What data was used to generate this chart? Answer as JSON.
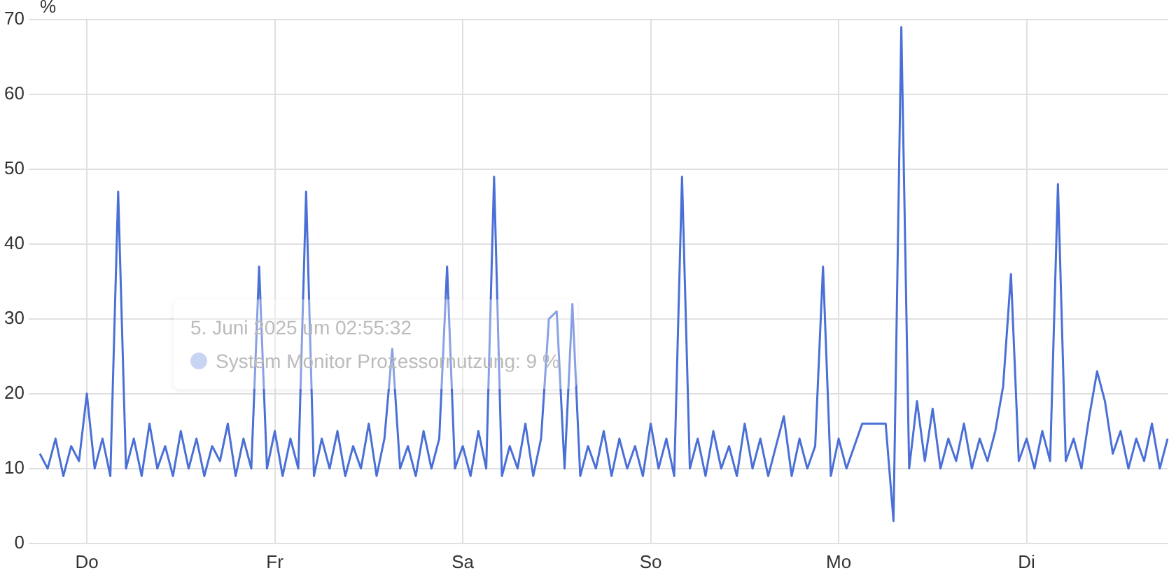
{
  "chart_data": {
    "type": "line",
    "ylabel": "%",
    "categories": [
      null,
      null,
      null,
      null,
      null,
      null,
      "Do",
      null,
      null,
      null,
      null,
      null,
      null,
      null,
      null,
      null,
      null,
      null,
      null,
      null,
      null,
      null,
      null,
      null,
      null,
      null,
      null,
      null,
      null,
      null,
      "Fr",
      null,
      null,
      null,
      null,
      null,
      null,
      null,
      null,
      null,
      null,
      null,
      null,
      null,
      null,
      null,
      null,
      null,
      null,
      null,
      null,
      null,
      null,
      null,
      "Sa",
      null,
      null,
      null,
      null,
      null,
      null,
      null,
      null,
      null,
      null,
      null,
      null,
      null,
      null,
      null,
      null,
      null,
      null,
      null,
      null,
      null,
      null,
      null,
      "So",
      null,
      null,
      null,
      null,
      null,
      null,
      null,
      null,
      null,
      null,
      null,
      null,
      null,
      null,
      null,
      null,
      null,
      null,
      null,
      null,
      null,
      null,
      null,
      "Mo",
      null,
      null,
      null,
      null,
      null,
      null,
      null,
      null,
      null,
      null,
      null,
      null,
      null,
      null,
      null,
      null,
      null,
      null,
      null,
      null,
      null,
      null,
      null,
      "Di",
      null,
      null,
      null,
      null,
      null,
      null,
      null,
      null,
      null,
      null,
      null,
      null,
      null,
      null,
      null,
      null,
      null,
      null
    ],
    "ylim": [
      0,
      70
    ],
    "yticks": [
      0,
      10,
      20,
      30,
      40,
      50,
      60,
      70
    ],
    "grid": true,
    "legend": false,
    "marker": "none",
    "line_style": "solid",
    "annotations": [
      "5. Juni 2025 um 02:55:32",
      "System Monitor Prozessornutzung: 9 %"
    ],
    "series": [
      {
        "color": "#4a6fd6",
        "values": [
          12,
          10,
          14,
          9,
          13,
          11,
          20,
          10,
          14,
          9,
          47,
          10,
          14,
          9,
          16,
          10,
          13,
          9,
          15,
          10,
          14,
          9,
          13,
          11,
          16,
          9,
          14,
          10,
          37,
          10,
          15,
          9,
          14,
          10,
          47,
          9,
          14,
          10,
          15,
          9,
          13,
          10,
          16,
          9,
          14,
          26,
          10,
          13,
          9,
          15,
          10,
          14,
          37,
          10,
          13,
          9,
          15,
          10,
          49,
          9,
          13,
          10,
          16,
          9,
          14,
          30,
          31,
          10,
          32,
          9,
          13,
          10,
          15,
          9,
          14,
          10,
          13,
          9,
          16,
          10,
          14,
          9,
          49,
          10,
          14,
          9,
          15,
          10,
          13,
          9,
          16,
          10,
          14,
          9,
          13,
          17,
          9,
          14,
          10,
          13,
          37,
          9,
          14,
          10,
          13,
          16,
          16,
          16,
          16,
          3,
          69,
          10,
          19,
          11,
          18,
          10,
          14,
          11,
          16,
          10,
          14,
          11,
          15,
          21,
          36,
          11,
          14,
          10,
          15,
          11,
          48,
          11,
          14,
          10,
          17,
          23,
          19,
          12,
          15,
          10,
          14,
          11,
          16,
          10,
          14
        ]
      }
    ]
  }
}
